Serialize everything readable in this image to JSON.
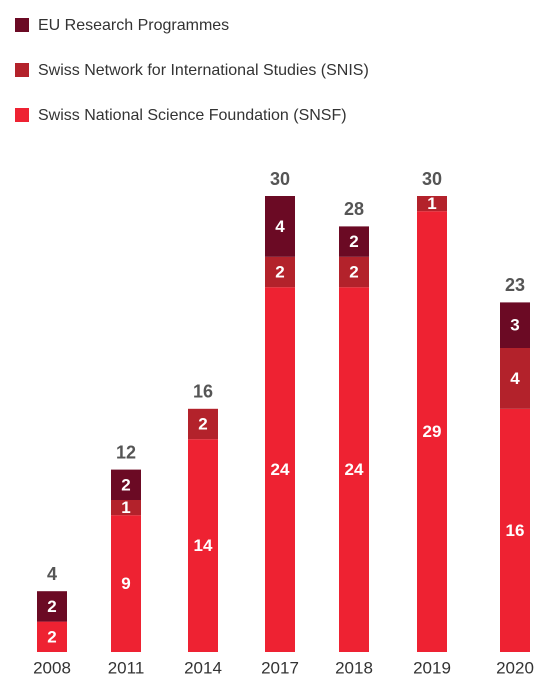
{
  "chart_data": {
    "type": "bar",
    "stacked": true,
    "categories": [
      "2008",
      "2011",
      "2014",
      "2017",
      "2018",
      "2019",
      "2020"
    ],
    "series": [
      {
        "name": "EU Research Programmes",
        "color": "#6b0a24",
        "values": [
          2,
          2,
          null,
          4,
          2,
          null,
          3
        ]
      },
      {
        "name": "Swiss Network for International Studies (SNIS)",
        "color": "#b3222b",
        "values": [
          null,
          1,
          2,
          2,
          2,
          1,
          4
        ]
      },
      {
        "name": "Swiss National Science Foundation (SNSF)",
        "color": "#ee2232",
        "values": [
          2,
          9,
          14,
          24,
          24,
          29,
          16
        ]
      }
    ],
    "totals": [
      4,
      12,
      16,
      30,
      28,
      30,
      23
    ]
  }
}
